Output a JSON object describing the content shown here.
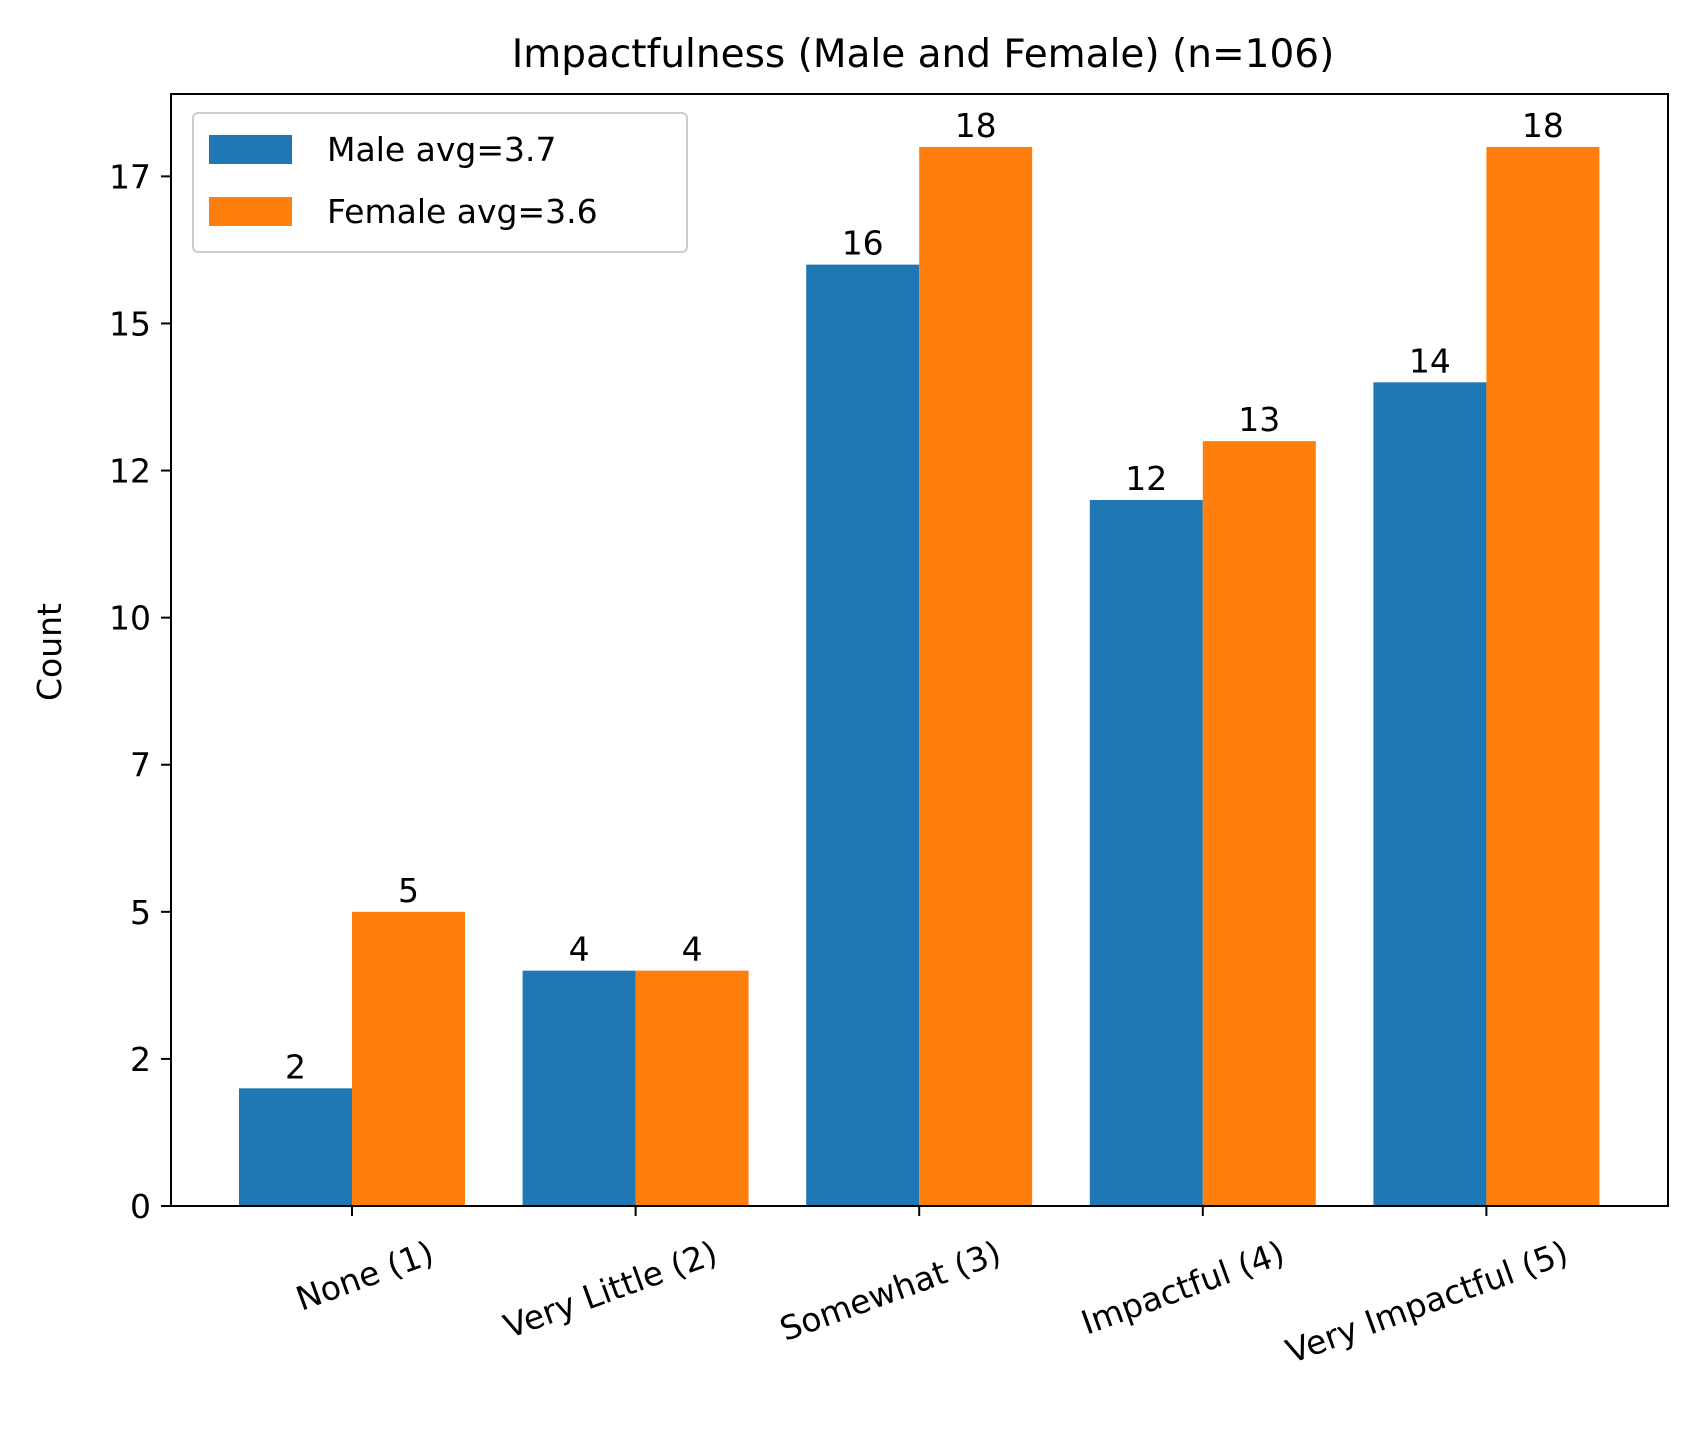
{
  "chart_data": {
    "type": "bar",
    "title": "Impactfulness (Male and Female) (n=106)",
    "xlabel": "",
    "ylabel": "Count",
    "categories": [
      "None (1)",
      "Very Little (2)",
      "Somewhat (3)",
      "Impactful (4)",
      "Very Impactful (5)"
    ],
    "series": [
      {
        "name": "Male avg=3.7",
        "color": "#1f77b4",
        "values": [
          2,
          4,
          16,
          12,
          14
        ]
      },
      {
        "name": "Female avg=3.6",
        "color": "#ff7f0e",
        "values": [
          5,
          4,
          18,
          13,
          18
        ]
      }
    ],
    "yticks": [
      "0",
      "2",
      "5",
      "7",
      "10",
      "12",
      "15",
      "17"
    ],
    "ylim": [
      0,
      18.9
    ],
    "grid": false,
    "legend": "top-left"
  }
}
